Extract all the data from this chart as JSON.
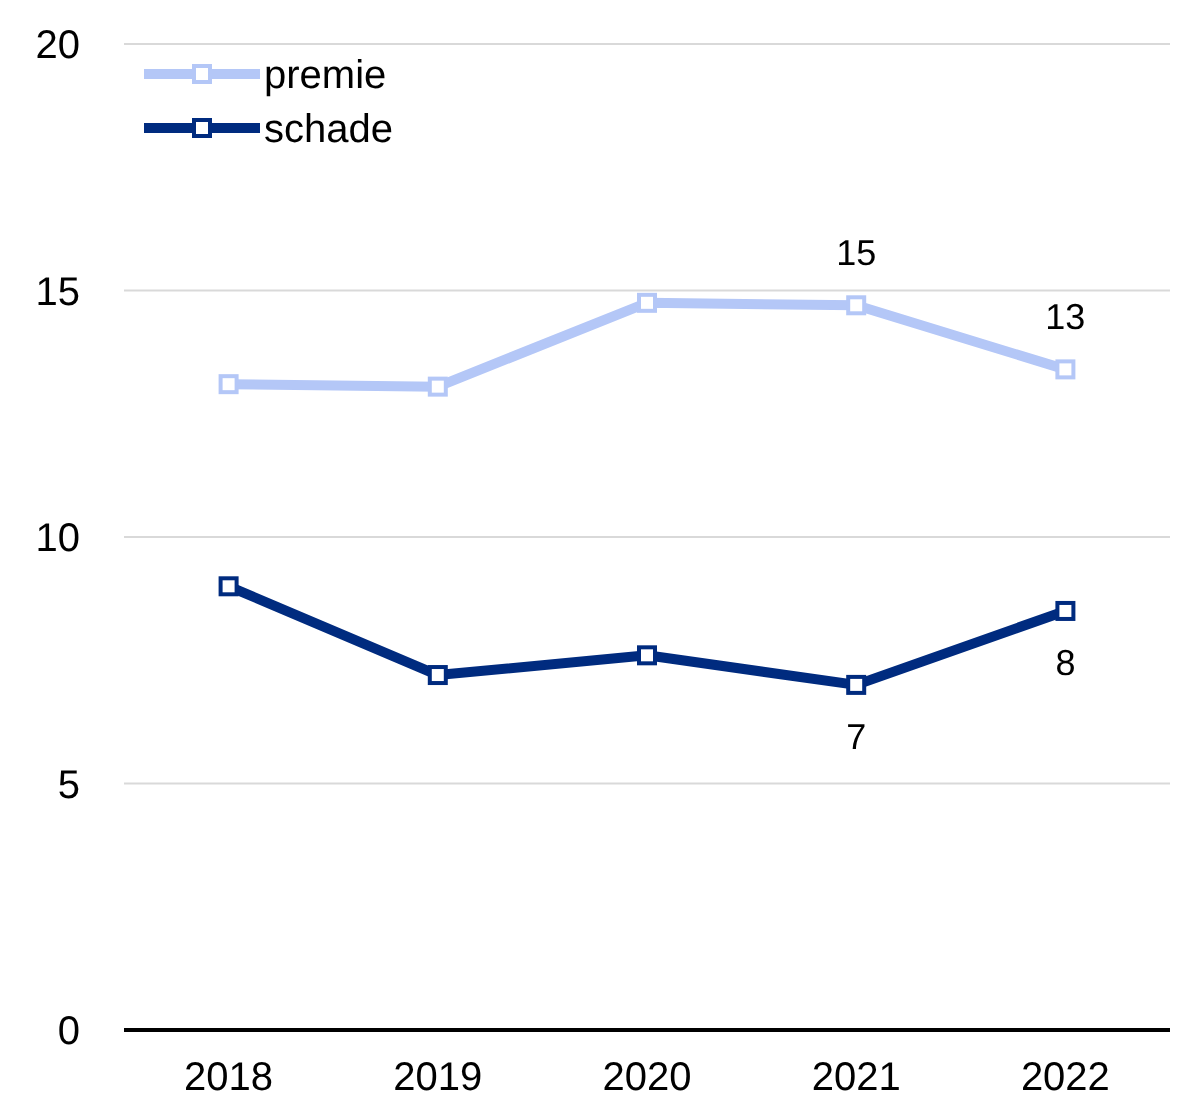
{
  "chart_data": {
    "type": "line",
    "categories": [
      "2018",
      "2019",
      "2020",
      "2021",
      "2022"
    ],
    "series": [
      {
        "name": "premie",
        "color": "#b4c7f7",
        "values": [
          13.1,
          13.05,
          14.75,
          14.7,
          13.4
        ],
        "value_labels": [
          null,
          null,
          null,
          "15",
          "13"
        ]
      },
      {
        "name": "schade",
        "color": "#002b7f",
        "values": [
          9.0,
          7.2,
          7.6,
          7.0,
          8.5
        ],
        "value_labels": [
          null,
          null,
          null,
          "7",
          "8"
        ]
      }
    ],
    "ylim": [
      0,
      20
    ],
    "yticks": [
      0,
      5,
      10,
      15,
      20
    ],
    "grid": "y",
    "legend": "top left",
    "marker": "square",
    "line_style": "solid"
  }
}
